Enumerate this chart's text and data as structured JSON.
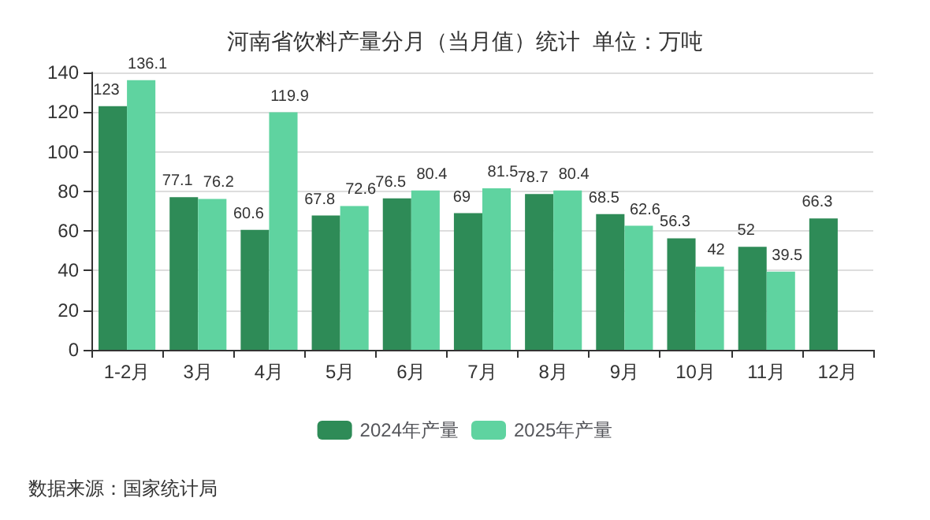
{
  "chart_data": {
    "type": "bar",
    "title": "河南省饮料产量分月（当月值）统计  单位：万吨",
    "categories": [
      "1-2月",
      "3月",
      "4月",
      "5月",
      "6月",
      "7月",
      "8月",
      "9月",
      "10月",
      "11月",
      "12月"
    ],
    "series": [
      {
        "name": "2024年产量",
        "color": "#2e8b57",
        "values": [
          123,
          77.1,
          60.6,
          67.8,
          76.5,
          69,
          78.7,
          68.5,
          56.3,
          52,
          66.3
        ]
      },
      {
        "name": "2025年产量",
        "color": "#5fd3a0",
        "values": [
          136.1,
          76.2,
          119.9,
          72.6,
          80.4,
          81.5,
          80.4,
          62.6,
          42,
          39.5,
          null
        ]
      }
    ],
    "ylim": [
      0,
      140
    ],
    "yticks": [
      0,
      20,
      40,
      60,
      80,
      100,
      120,
      140
    ],
    "grid": "y",
    "legend": "bottom",
    "data_labels": true,
    "annotations": [
      "数据来源：国家统计局"
    ]
  }
}
